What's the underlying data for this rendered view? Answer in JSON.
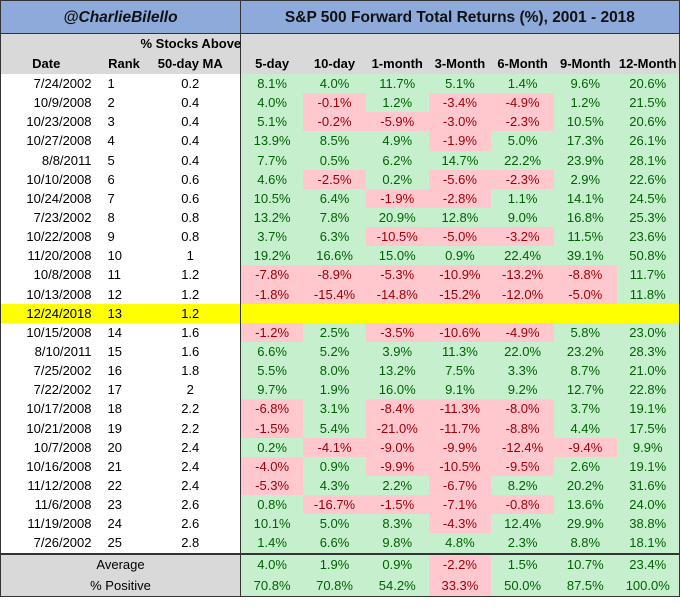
{
  "header": {
    "handle": "@CharlieBilello",
    "title": "S&P 500 Forward Total Returns (%), 2001 - 2018"
  },
  "columns": {
    "date": "Date",
    "rank": "Rank",
    "ma_line1": "% Stocks Above",
    "ma_line2": "50-day MA",
    "periods": [
      "5-day",
      "10-day",
      "1-month",
      "3-Month",
      "6-Month",
      "9-Month",
      "12-Month"
    ]
  },
  "colors": {
    "header_bg": "#8eaadb",
    "positive_bg": "#c6efce",
    "positive_text": "#006100",
    "negative_bg": "#ffc7ce",
    "negative_text": "#9c0006",
    "highlight": "#ffff00"
  },
  "rows": [
    {
      "date": "7/24/2002",
      "rank": "1",
      "ma": "0.2",
      "values": [
        "8.1%",
        "4.0%",
        "11.7%",
        "5.1%",
        "1.4%",
        "9.6%",
        "20.6%"
      ]
    },
    {
      "date": "10/9/2008",
      "rank": "2",
      "ma": "0.4",
      "values": [
        "4.0%",
        "-0.1%",
        "1.2%",
        "-3.4%",
        "-4.9%",
        "1.2%",
        "21.5%"
      ]
    },
    {
      "date": "10/23/2008",
      "rank": "3",
      "ma": "0.4",
      "values": [
        "5.1%",
        "-0.2%",
        "-5.9%",
        "-3.0%",
        "-2.3%",
        "10.5%",
        "20.6%"
      ]
    },
    {
      "date": "10/27/2008",
      "rank": "4",
      "ma": "0.4",
      "values": [
        "13.9%",
        "8.5%",
        "4.9%",
        "-1.9%",
        "5.0%",
        "17.3%",
        "26.1%"
      ]
    },
    {
      "date": "8/8/2011",
      "rank": "5",
      "ma": "0.4",
      "values": [
        "7.7%",
        "0.5%",
        "6.2%",
        "14.7%",
        "22.2%",
        "23.9%",
        "28.1%"
      ]
    },
    {
      "date": "10/10/2008",
      "rank": "6",
      "ma": "0.6",
      "values": [
        "4.6%",
        "-2.5%",
        "0.2%",
        "-5.6%",
        "-2.3%",
        "2.9%",
        "22.6%"
      ]
    },
    {
      "date": "10/24/2008",
      "rank": "7",
      "ma": "0.6",
      "values": [
        "10.5%",
        "6.4%",
        "-1.9%",
        "-2.8%",
        "1.1%",
        "14.1%",
        "24.5%"
      ]
    },
    {
      "date": "7/23/2002",
      "rank": "8",
      "ma": "0.8",
      "values": [
        "13.2%",
        "7.8%",
        "20.9%",
        "12.8%",
        "9.0%",
        "16.8%",
        "25.3%"
      ]
    },
    {
      "date": "10/22/2008",
      "rank": "9",
      "ma": "0.8",
      "values": [
        "3.7%",
        "6.3%",
        "-10.5%",
        "-5.0%",
        "-3.2%",
        "11.5%",
        "23.6%"
      ]
    },
    {
      "date": "11/20/2008",
      "rank": "10",
      "ma": "1",
      "values": [
        "19.2%",
        "16.6%",
        "15.0%",
        "0.9%",
        "22.4%",
        "39.1%",
        "50.8%"
      ]
    },
    {
      "date": "10/8/2008",
      "rank": "11",
      "ma": "1.2",
      "values": [
        "-7.8%",
        "-8.9%",
        "-5.3%",
        "-10.9%",
        "-13.2%",
        "-8.8%",
        "11.7%"
      ]
    },
    {
      "date": "10/13/2008",
      "rank": "12",
      "ma": "1.2",
      "values": [
        "-1.8%",
        "-15.4%",
        "-14.8%",
        "-15.2%",
        "-12.0%",
        "-5.0%",
        "11.8%"
      ]
    },
    {
      "date": "12/24/2018",
      "rank": "13",
      "ma": "1.2",
      "highlight": true,
      "values": []
    },
    {
      "date": "10/15/2008",
      "rank": "14",
      "ma": "1.6",
      "values": [
        "-1.2%",
        "2.5%",
        "-3.5%",
        "-10.6%",
        "-4.9%",
        "5.8%",
        "23.0%"
      ]
    },
    {
      "date": "8/10/2011",
      "rank": "15",
      "ma": "1.6",
      "values": [
        "6.6%",
        "5.2%",
        "3.9%",
        "11.3%",
        "22.0%",
        "23.2%",
        "28.3%"
      ]
    },
    {
      "date": "7/25/2002",
      "rank": "16",
      "ma": "1.8",
      "values": [
        "5.5%",
        "8.0%",
        "13.2%",
        "7.5%",
        "3.3%",
        "8.7%",
        "21.0%"
      ]
    },
    {
      "date": "7/22/2002",
      "rank": "17",
      "ma": "2",
      "values": [
        "9.7%",
        "1.9%",
        "16.0%",
        "9.1%",
        "9.2%",
        "12.7%",
        "22.8%"
      ]
    },
    {
      "date": "10/17/2008",
      "rank": "18",
      "ma": "2.2",
      "values": [
        "-6.8%",
        "3.1%",
        "-8.4%",
        "-11.3%",
        "-8.0%",
        "3.7%",
        "19.1%"
      ]
    },
    {
      "date": "10/21/2008",
      "rank": "19",
      "ma": "2.2",
      "values": [
        "-1.5%",
        "5.4%",
        "-21.0%",
        "-11.7%",
        "-8.8%",
        "4.4%",
        "17.5%"
      ]
    },
    {
      "date": "10/7/2008",
      "rank": "20",
      "ma": "2.4",
      "values": [
        "0.2%",
        "-4.1%",
        "-9.0%",
        "-9.9%",
        "-12.4%",
        "-9.4%",
        "9.9%"
      ]
    },
    {
      "date": "10/16/2008",
      "rank": "21",
      "ma": "2.4",
      "values": [
        "-4.0%",
        "0.9%",
        "-9.9%",
        "-10.5%",
        "-9.5%",
        "2.6%",
        "19.1%"
      ]
    },
    {
      "date": "11/12/2008",
      "rank": "22",
      "ma": "2.4",
      "values": [
        "-5.3%",
        "4.3%",
        "2.2%",
        "-6.7%",
        "8.2%",
        "20.2%",
        "31.6%"
      ]
    },
    {
      "date": "11/6/2008",
      "rank": "23",
      "ma": "2.6",
      "values": [
        "0.8%",
        "-16.7%",
        "-1.5%",
        "-7.1%",
        "-0.8%",
        "13.6%",
        "24.0%"
      ]
    },
    {
      "date": "11/19/2008",
      "rank": "24",
      "ma": "2.6",
      "values": [
        "10.1%",
        "5.0%",
        "8.3%",
        "-4.3%",
        "12.4%",
        "29.9%",
        "38.8%"
      ]
    },
    {
      "date": "7/26/2002",
      "rank": "25",
      "ma": "2.8",
      "values": [
        "1.4%",
        "6.6%",
        "9.8%",
        "4.8%",
        "2.3%",
        "8.8%",
        "18.1%"
      ]
    }
  ],
  "footer": [
    {
      "label": "Average",
      "values": [
        "4.0%",
        "1.9%",
        "0.9%",
        "-2.2%",
        "1.5%",
        "10.7%",
        "23.4%"
      ],
      "red_cells": [
        3
      ]
    },
    {
      "label": "% Positive",
      "values": [
        "70.8%",
        "70.8%",
        "54.2%",
        "33.3%",
        "50.0%",
        "87.5%",
        "100.0%"
      ],
      "red_cells": [
        3
      ]
    }
  ]
}
